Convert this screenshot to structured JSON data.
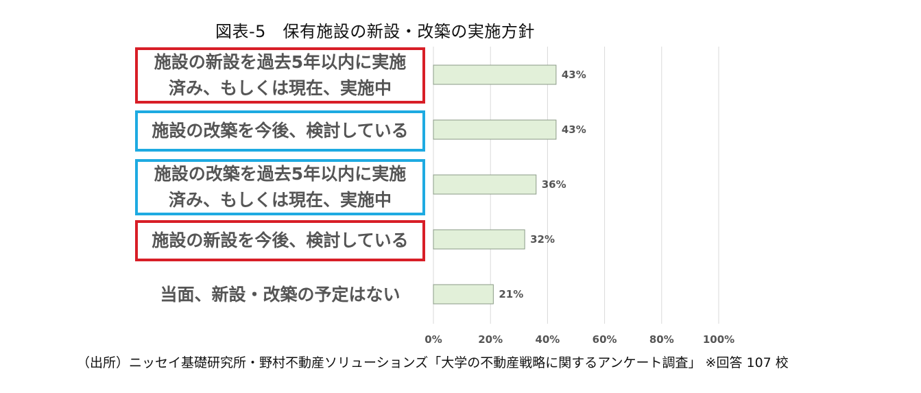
{
  "chart_data": {
    "type": "bar",
    "orientation": "horizontal",
    "title": "図表-5　保有施設の新設・改築の実施方針",
    "categories": [
      "施設の新設を過去5年以内に実施\n済み、もしくは現在、実施中",
      "施設の改築を今後、検討している",
      "施設の改築を過去5年以内に実施\n済み、もしくは現在、実施中",
      "施設の新設を今後、検討している",
      "当面、新設・改築の予定はない"
    ],
    "values": [
      43,
      43,
      36,
      32,
      21
    ],
    "data_labels": [
      "43%",
      "43%",
      "36%",
      "32%",
      "21%"
    ],
    "category_frames": [
      "red",
      "blue",
      "blue",
      "red",
      "none"
    ],
    "x_ticks": [
      0,
      20,
      40,
      60,
      80,
      100
    ],
    "x_tick_labels": [
      "0%",
      "20%",
      "40%",
      "60%",
      "80%",
      "100%"
    ],
    "xlim": [
      0,
      100
    ],
    "xlabel": "",
    "ylabel": "",
    "grid": "vertical",
    "legend": "none",
    "colors": {
      "bar_fill": "#e2f0d9",
      "bar_stroke": "#8a9a86",
      "gridline": "#d9d9d9",
      "frame_red": "#d81e27",
      "frame_blue": "#1eaae1",
      "label_text": "#555555"
    }
  },
  "source": "（出所）ニッセイ基礎研究所・野村不動産ソリューションズ「大学の不動産戦略に関するアンケート調査」 ※回答 107 校"
}
